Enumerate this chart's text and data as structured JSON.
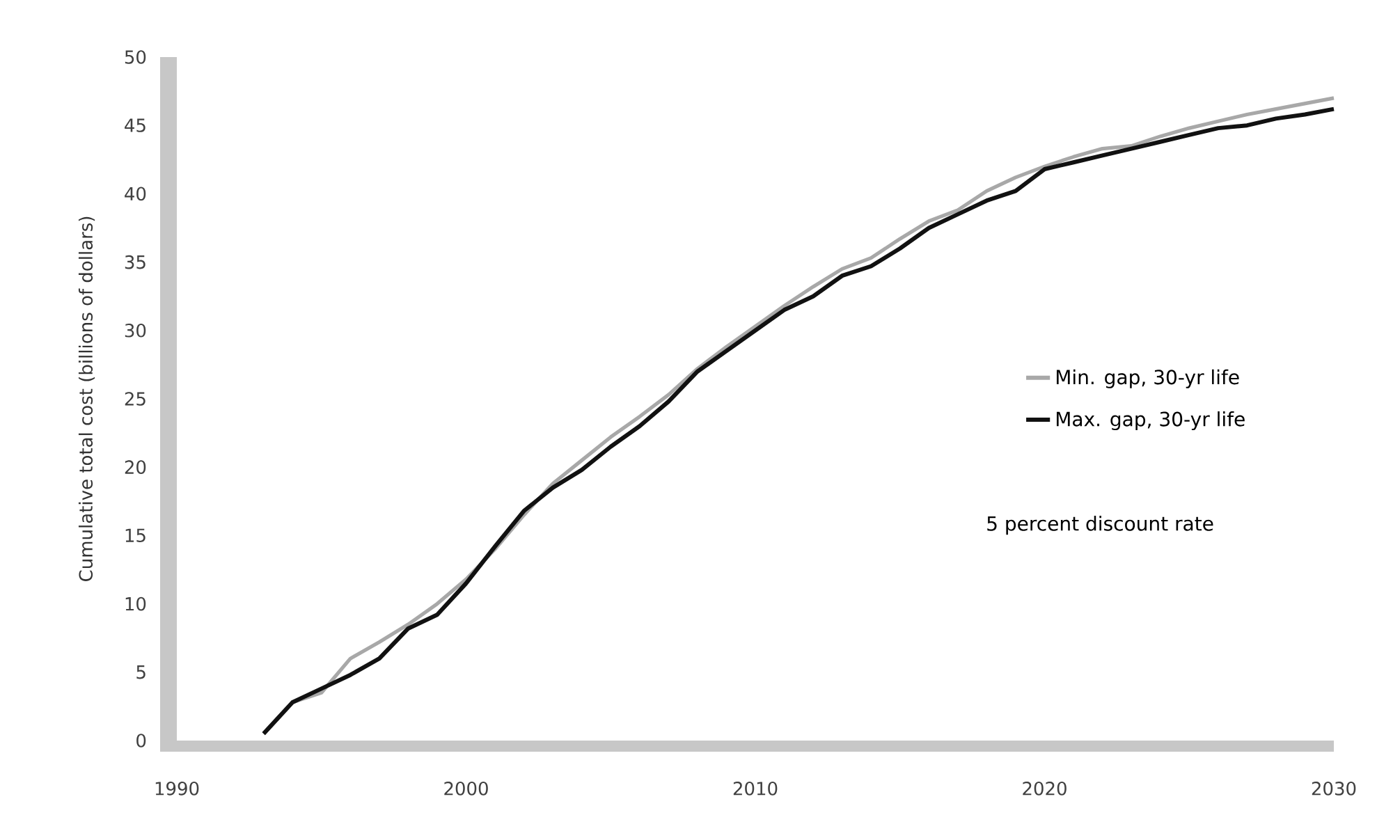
{
  "chart_data": {
    "type": "line",
    "ylabel": "Cumulative total cost (billions of dollars)",
    "x": [
      1993,
      1994,
      1995,
      1996,
      1997,
      1998,
      1999,
      2000,
      2001,
      2002,
      2003,
      2004,
      2005,
      2006,
      2007,
      2008,
      2009,
      2010,
      2011,
      2012,
      2013,
      2014,
      2015,
      2016,
      2017,
      2018,
      2019,
      2020,
      2021,
      2022,
      2023,
      2024,
      2025,
      2026,
      2027,
      2028,
      2029,
      2030
    ],
    "series": [
      {
        "name": "Min. gap, 30-yr life",
        "color": "#a8a8a8",
        "values": [
          0.5,
          2.8,
          3.5,
          6,
          7.2,
          8.5,
          10,
          11.8,
          14,
          16.5,
          18.8,
          20.5,
          22.2,
          23.7,
          25.3,
          27.2,
          28.8,
          30.3,
          31.8,
          33.2,
          34.5,
          35.3,
          36.7,
          38,
          38.8,
          40.2,
          41.2,
          42,
          42.7,
          43.3,
          43.5,
          44.2,
          44.8,
          45.3,
          45.8,
          46.2,
          46.6,
          47
        ]
      },
      {
        "name": "Max. gap, 30-yr life",
        "color": "#111111",
        "values": [
          0.5,
          2.8,
          3.8,
          4.8,
          6,
          8.2,
          9.2,
          11.5,
          14.2,
          16.8,
          18.5,
          19.8,
          21.5,
          23,
          24.8,
          27,
          28.5,
          30,
          31.5,
          32.5,
          34,
          34.7,
          36,
          37.5,
          38.5,
          39.5,
          40.2,
          41.8,
          42.3,
          42.8,
          43.3,
          43.8,
          44.3,
          44.8,
          45,
          45.5,
          45.8,
          46.2
        ]
      }
    ],
    "xlim": [
      1990,
      2030
    ],
    "ylim": [
      0,
      50
    ],
    "xticks": [
      1990,
      2000,
      2010,
      2020,
      2030
    ],
    "yticks": [
      0,
      5,
      10,
      15,
      20,
      25,
      30,
      35,
      40,
      45,
      50
    ],
    "annotations": [
      "5 percent discount rate"
    ],
    "legend": "right",
    "grid": false,
    "marker": "none",
    "line_style": "solid"
  }
}
